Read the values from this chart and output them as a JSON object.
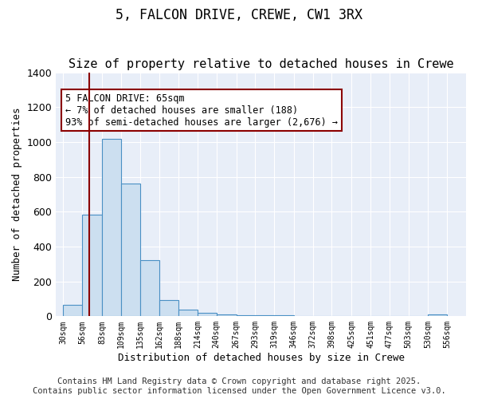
{
  "title1": "5, FALCON DRIVE, CREWE, CW1 3RX",
  "title2": "Size of property relative to detached houses in Crewe",
  "xlabel": "Distribution of detached houses by size in Crewe",
  "ylabel": "Number of detached properties",
  "bar_left_edges": [
    30,
    56,
    83,
    109,
    135,
    162,
    188,
    214,
    240,
    267,
    293,
    319,
    346,
    372,
    398,
    425,
    451,
    477,
    503,
    530
  ],
  "bar_widths": [
    26,
    27,
    26,
    26,
    27,
    26,
    26,
    26,
    27,
    26,
    26,
    27,
    26,
    26,
    27,
    26,
    26,
    26,
    27,
    26
  ],
  "bar_heights": [
    65,
    585,
    1020,
    760,
    320,
    95,
    40,
    20,
    12,
    8,
    5,
    4,
    3,
    2,
    2,
    1,
    1,
    1,
    1,
    10
  ],
  "tick_labels": [
    "30sqm",
    "56sqm",
    "83sqm",
    "109sqm",
    "135sqm",
    "162sqm",
    "188sqm",
    "214sqm",
    "240sqm",
    "267sqm",
    "293sqm",
    "319sqm",
    "346sqm",
    "372sqm",
    "398sqm",
    "425sqm",
    "451sqm",
    "477sqm",
    "503sqm",
    "530sqm",
    "556sqm"
  ],
  "tick_positions": [
    30,
    56,
    83,
    109,
    135,
    162,
    188,
    214,
    240,
    267,
    293,
    319,
    346,
    372,
    398,
    425,
    451,
    477,
    503,
    530,
    556
  ],
  "bar_color": "#ccdff0",
  "bar_edge_color": "#4a90c4",
  "vline_x": 65,
  "vline_color": "#8b0000",
  "annotation_text": "5 FALCON DRIVE: 65sqm\n← 7% of detached houses are smaller (188)\n93% of semi-detached houses are larger (2,676) →",
  "annotation_box_color": "#8b0000",
  "ylim": [
    0,
    1400
  ],
  "yticks": [
    0,
    200,
    400,
    600,
    800,
    1000,
    1200,
    1400
  ],
  "bg_color": "#e8eef8",
  "footer_text": "Contains HM Land Registry data © Crown copyright and database right 2025.\nContains public sector information licensed under the Open Government Licence v3.0.",
  "title1_fontsize": 12,
  "title2_fontsize": 11,
  "annotation_fontsize": 8.5,
  "footer_fontsize": 7.5
}
